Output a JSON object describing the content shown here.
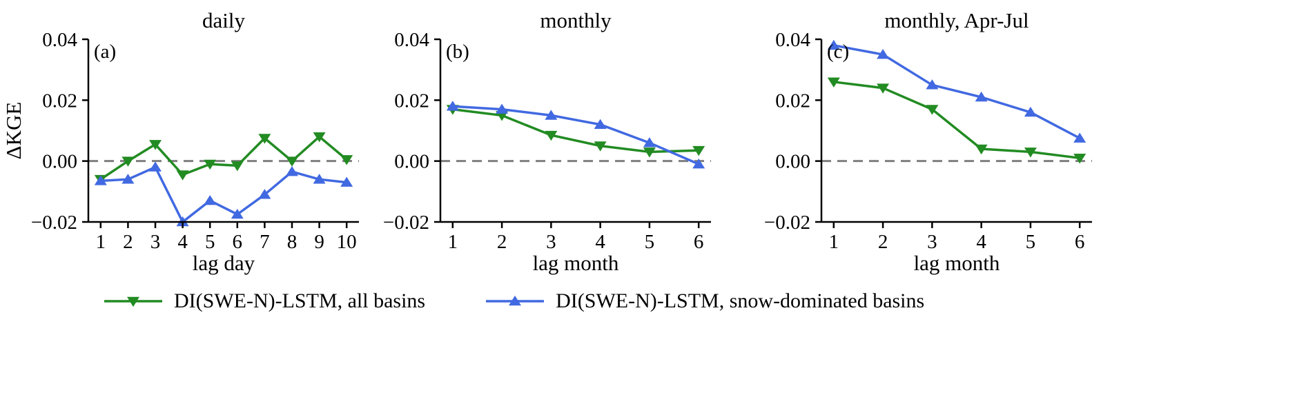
{
  "figure": {
    "background": "#ffffff",
    "ylabel": "ΔKGE",
    "zero_line_color": "#7f7f7f",
    "axis_color": "#000000"
  },
  "legend": {
    "entries": [
      {
        "label": "DI(SWE-N)-LSTM, all basins",
        "color": "#228B22",
        "marker": "triangle-down"
      },
      {
        "label": "DI(SWE-N)-LSTM, snow-dominated basins",
        "color": "#4169E1",
        "marker": "triangle-up"
      }
    ]
  },
  "chart_data": [
    {
      "type": "line",
      "panel_label": "(a)",
      "title": "daily",
      "xlabel": "lag day",
      "ylabel": "ΔKGE",
      "x": [
        1,
        2,
        3,
        4,
        5,
        6,
        7,
        8,
        9,
        10
      ],
      "xticks": [
        1,
        2,
        3,
        4,
        5,
        6,
        7,
        8,
        9,
        10
      ],
      "ylim": [
        -0.02,
        0.04
      ],
      "yticks": [
        -0.02,
        0,
        0.02,
        0.04
      ],
      "zero_line": true,
      "grid": false,
      "series": [
        {
          "name": "DI(SWE-N)-LSTM, all basins",
          "color": "#228B22",
          "marker": "triangle-down",
          "values": [
            -0.006,
            0.0,
            0.0055,
            -0.0045,
            -0.001,
            -0.0015,
            0.0075,
            0.0,
            0.008,
            0.0005
          ]
        },
        {
          "name": "DI(SWE-N)-LSTM, snow-dominated basins",
          "color": "#4169E1",
          "marker": "triangle-up",
          "values": [
            -0.0065,
            -0.006,
            -0.002,
            -0.02,
            -0.013,
            -0.0175,
            -0.011,
            -0.0035,
            -0.006,
            -0.007
          ]
        }
      ]
    },
    {
      "type": "line",
      "panel_label": "(b)",
      "title": "monthly",
      "xlabel": "lag month",
      "x": [
        1,
        2,
        3,
        4,
        5,
        6
      ],
      "xticks": [
        1,
        2,
        3,
        4,
        5,
        6
      ],
      "ylim": [
        -0.02,
        0.04
      ],
      "yticks": [
        -0.02,
        0,
        0.02,
        0.04
      ],
      "zero_line": true,
      "grid": false,
      "series": [
        {
          "name": "DI(SWE-N)-LSTM, all basins",
          "color": "#228B22",
          "marker": "triangle-down",
          "values": [
            0.017,
            0.015,
            0.0085,
            0.005,
            0.003,
            0.0035
          ]
        },
        {
          "name": "DI(SWE-N)-LSTM, snow-dominated basins",
          "color": "#4169E1",
          "marker": "triangle-up",
          "values": [
            0.018,
            0.017,
            0.015,
            0.012,
            0.006,
            -0.001
          ]
        }
      ]
    },
    {
      "type": "line",
      "panel_label": "(c)",
      "title": "monthly, Apr-Jul",
      "xlabel": "lag month",
      "x": [
        1,
        2,
        3,
        4,
        5,
        6
      ],
      "xticks": [
        1,
        2,
        3,
        4,
        5,
        6
      ],
      "ylim": [
        -0.02,
        0.04
      ],
      "yticks": [
        -0.02,
        0,
        0.02,
        0.04
      ],
      "zero_line": true,
      "grid": false,
      "series": [
        {
          "name": "DI(SWE-N)-LSTM, all basins",
          "color": "#228B22",
          "marker": "triangle-down",
          "values": [
            0.026,
            0.024,
            0.017,
            0.004,
            0.003,
            0.001
          ]
        },
        {
          "name": "DI(SWE-N)-LSTM, snow-dominated basins",
          "color": "#4169E1",
          "marker": "triangle-up",
          "values": [
            0.038,
            0.035,
            0.025,
            0.021,
            0.016,
            0.0075
          ]
        }
      ]
    }
  ]
}
